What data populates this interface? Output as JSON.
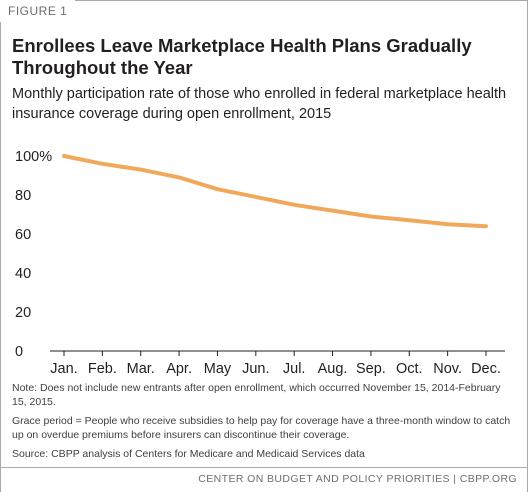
{
  "figure_label": "FIGURE 1",
  "title": "Enrollees Leave Marketplace Health Plans Gradually Throughout the Year",
  "subtitle": "Monthly participation rate of those who enrolled in federal marketplace health insurance coverage during open enrollment, 2015",
  "notes": [
    "Note: Does not include new entrants after open enrollment, which occurred November 15, 2014-February 15, 2015.",
    "Grace period = People who receive subsidies to help pay for coverage have a three-month window to catch up on overdue premiums before insurers can discontinue their coverage.",
    "Source: CBPP analysis of Centers for Medicare and Medicaid Services data"
  ],
  "footer": "CENTER ON BUDGET AND POLICY PRIORITIES | CBPP.ORG",
  "colors": {
    "line": "#f0a95b",
    "axis": "#231f20",
    "text": "#231f20"
  },
  "chart_data": {
    "type": "line",
    "categories": [
      "Jan.",
      "Feb.",
      "Mar.",
      "Apr.",
      "May",
      "Jun.",
      "Jul.",
      "Aug.",
      "Sep.",
      "Oct.",
      "Nov.",
      "Dec."
    ],
    "series": [
      {
        "values": [
          100,
          96,
          93,
          89,
          83,
          79,
          75,
          72,
          69,
          67,
          65,
          64
        ]
      }
    ],
    "yticks": [
      "0",
      "20",
      "40",
      "60",
      "80",
      "100%"
    ],
    "ylim": [
      0,
      100
    ],
    "grid": false,
    "legend": "none"
  }
}
